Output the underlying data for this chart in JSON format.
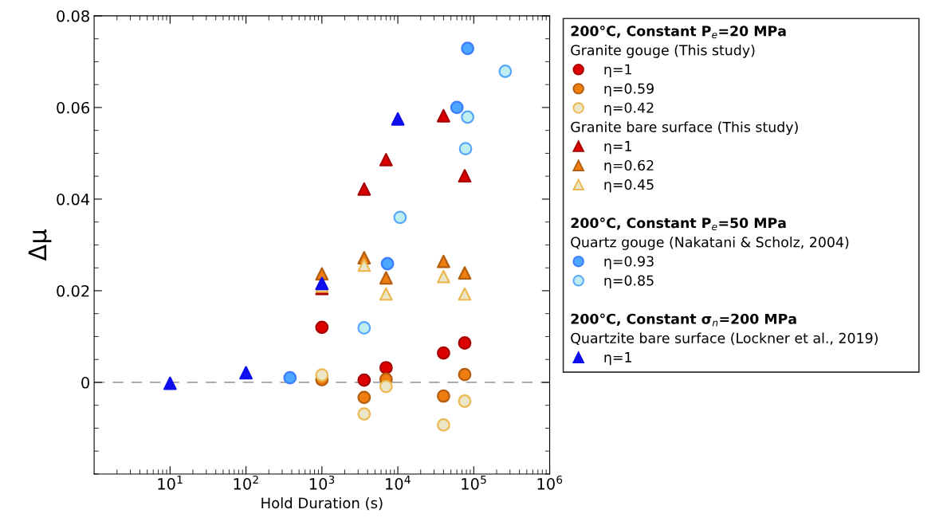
{
  "chart_data": {
    "type": "scatter",
    "xlabel": "Hold Duration (s)",
    "ylabel": "Δμ",
    "log": "x",
    "xlim": [
      1,
      1000000
    ],
    "xticks": [
      {
        "value": 10,
        "label": "10$^{1}$"
      },
      {
        "value": 100,
        "label": "10$^{2}$"
      },
      {
        "value": 1000,
        "label": "10$^{3}$"
      },
      {
        "value": 10000,
        "label": "10$^{4}$"
      },
      {
        "value": 100000,
        "label": "10$^{5}$"
      },
      {
        "value": 1000000,
        "label": "10$^{6}$"
      }
    ],
    "ylim": [
      -0.02,
      0.08
    ],
    "yticks": [
      {
        "value": -0.02,
        "label": null
      },
      {
        "value": -0.015,
        "label": null
      },
      {
        "value": -0.01,
        "label": null
      },
      {
        "value": -0.005,
        "label": null
      },
      {
        "value": 0,
        "label": "0"
      },
      {
        "value": 0.005,
        "label": null
      },
      {
        "value": 0.01,
        "label": null
      },
      {
        "value": 0.015,
        "label": null
      },
      {
        "value": 0.02,
        "label": "0.02"
      },
      {
        "value": 0.025,
        "label": null
      },
      {
        "value": 0.03,
        "label": null
      },
      {
        "value": 0.035,
        "label": null
      },
      {
        "value": 0.04,
        "label": "0.04"
      },
      {
        "value": 0.045,
        "label": null
      },
      {
        "value": 0.05,
        "label": null
      },
      {
        "value": 0.055,
        "label": null
      },
      {
        "value": 0.06,
        "label": "0.06"
      },
      {
        "value": 0.065,
        "label": null
      },
      {
        "value": 0.07,
        "label": null
      },
      {
        "value": 0.075,
        "label": null
      },
      {
        "value": 0.08,
        "label": "0.08"
      }
    ],
    "grid": false,
    "legend": "right",
    "annotations": [
      "200°C, Constant P$_{e}$=20 MPa",
      "Granite gouge (This study)",
      "Granite bare surface (This study)",
      "200°C, Constant P$_{e}$=50 MPa",
      "Quartz gouge (Nakatani & Scholz, 2004)",
      "200°C, Constant σ$_{n}$=200 MPa",
      "Quartzite bare surface (Lockner et al., 2019)"
    ],
    "ref_lines": [
      {
        "axis": "y",
        "value": 0,
        "color": "#a0a0a0",
        "line_style": "dashed"
      }
    ],
    "series": [
      {
        "name": "η=1",
        "color": "#dd0000",
        "marker": "circle",
        "x": [
          1000,
          3600,
          7000,
          40000,
          76000
        ],
        "values": [
          0.012,
          0.0005,
          0.0032,
          0.0064,
          0.0086
        ]
      },
      {
        "name": "η=0.59",
        "color": "#f07d10",
        "marker": "circle",
        "x": [
          1000,
          3600,
          7000,
          40000,
          76000
        ],
        "values": [
          0.0006,
          -0.0033,
          0.0007,
          -0.003,
          0.0017
        ]
      },
      {
        "name": "η=0.42",
        "color": "#ece6c8",
        "marker": "circle",
        "x": [
          1000,
          3600,
          7000,
          40000,
          76000
        ],
        "values": [
          0.0016,
          -0.0069,
          -0.0009,
          -0.0093,
          -0.0041
        ]
      },
      {
        "name": "η=1",
        "color": "#dd0000",
        "marker": "triangle",
        "x": [
          1000,
          3600,
          7000,
          40000,
          76000
        ],
        "values": [
          0.0205,
          0.0422,
          0.0486,
          0.0582,
          0.0451
        ]
      },
      {
        "name": "η=0.62",
        "color": "#f07d10",
        "marker": "triangle",
        "x": [
          1000,
          3600,
          7000,
          40000,
          76000
        ],
        "values": [
          0.0237,
          0.0272,
          0.0228,
          0.0264,
          0.0239
        ]
      },
      {
        "name": "η=0.45",
        "color": "#ece6c8",
        "marker": "triangle",
        "x": [
          1000,
          3600,
          7000,
          40000,
          76000
        ],
        "values": [
          0.021,
          0.0256,
          0.0193,
          0.0231,
          0.0193
        ]
      },
      {
        "name": "η=0.93",
        "color": "#4da6ff",
        "marker": "circle",
        "x": [
          380,
          7300,
          60000,
          83000
        ],
        "values": [
          0.001,
          0.0259,
          0.06,
          0.0729
        ]
      },
      {
        "name": "η=0.85",
        "color": "#bfeef0",
        "marker": "circle",
        "x": [
          3600,
          10700,
          78000,
          83000,
          260000
        ],
        "values": [
          0.0119,
          0.036,
          0.051,
          0.0579,
          0.0679
        ]
      },
      {
        "name": "η=1",
        "color": "#1010ee",
        "marker": "triangle",
        "x": [
          10,
          100,
          1000,
          10000
        ],
        "values": [
          -0.0002,
          0.0021,
          0.0216,
          0.0575
        ]
      }
    ]
  }
}
